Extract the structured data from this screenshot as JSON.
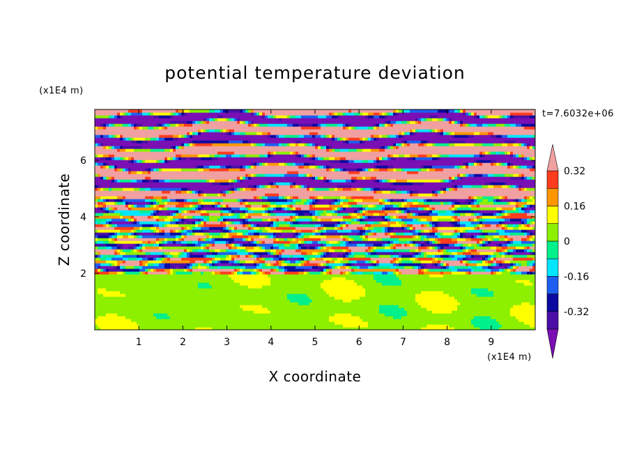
{
  "chart_data": {
    "type": "heatmap",
    "title": "potential temperature deviation",
    "xlabel": "X coordinate",
    "ylabel": "Z coordinate",
    "x_unit": "(x1E4 m)",
    "y_unit": "(x1E4 m)",
    "time_label": "t=7.6032e+06",
    "xlim": [
      0,
      10
    ],
    "ylim": [
      0,
      7.8
    ],
    "x_ticks": [
      "1",
      "2",
      "3",
      "4",
      "5",
      "6",
      "7",
      "8",
      "9"
    ],
    "y_ticks": [
      "2",
      "4",
      "6"
    ],
    "colorbar": {
      "levels": [
        -0.4,
        -0.32,
        -0.24,
        -0.16,
        -0.08,
        0,
        0.08,
        0.16,
        0.24,
        0.32,
        0.4
      ],
      "labels": [
        "0.32",
        "0.16",
        "0",
        "-0.16",
        "-0.32"
      ],
      "colors": [
        "#7a0fb4",
        "#4b0fa8",
        "#0a0aa0",
        "#1e5ff0",
        "#00e6ff",
        "#00f08c",
        "#8cf000",
        "#ffff00",
        "#ff9600",
        "#ff3c1e",
        "#f0a0a0"
      ],
      "extend": "both"
    },
    "field_description_levels": {
      "z_below_2": "near zero (0 to 0.08)",
      "z_2_to_4.5": "mixed small perturbations (-0.4 to 0.4)",
      "z_above_4.5": "alternating strong layers (below -0.4 / above 0.4)"
    }
  }
}
